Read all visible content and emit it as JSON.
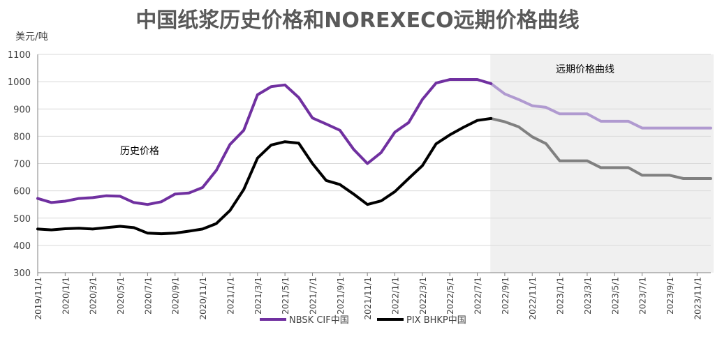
{
  "chart_data": {
    "type": "line",
    "title": "中国纸浆历史价格和NOREXECO远期价格曲线",
    "ylabel": "美元/吨",
    "ylim": [
      300,
      1100
    ],
    "yticks": [
      300,
      400,
      500,
      600,
      700,
      800,
      900,
      1000,
      1100
    ],
    "x_tick_labels": [
      "2019/11/1",
      "2020/1/1",
      "2020/3/1",
      "2020/5/1",
      "2020/7/1",
      "2020/9/1",
      "2020/11/1",
      "2021/1/1",
      "2021/3/1",
      "2021/5/1",
      "2021/7/1",
      "2021/9/1",
      "2021/11/1",
      "2022/1/1",
      "2022/3/1",
      "2022/5/1",
      "2022/7/1",
      "2022/9/1",
      "2022/11/1",
      "2023/1/1",
      "2023/3/1",
      "2023/5/1",
      "2023/7/1",
      "2023/9/1",
      "2023/11/1"
    ],
    "x_months": [
      "2019/11",
      "2019/12",
      "2020/1",
      "2020/2",
      "2020/3",
      "2020/4",
      "2020/5",
      "2020/6",
      "2020/7",
      "2020/8",
      "2020/9",
      "2020/10",
      "2020/11",
      "2020/12",
      "2021/1",
      "2021/2",
      "2021/3",
      "2021/4",
      "2021/5",
      "2021/6",
      "2021/7",
      "2021/8",
      "2021/9",
      "2021/10",
      "2021/11",
      "2021/12",
      "2022/1",
      "2022/2",
      "2022/3",
      "2022/4",
      "2022/5",
      "2022/6",
      "2022/7",
      "2022/8",
      "2022/9",
      "2022/10",
      "2022/11",
      "2022/12",
      "2023/1",
      "2023/2",
      "2023/3",
      "2023/4",
      "2023/5",
      "2023/6",
      "2023/7",
      "2023/8",
      "2023/9",
      "2023/10",
      "2023/11",
      "2023/12"
    ],
    "history_end_index": 33,
    "region_labels": {
      "history": "历史价格",
      "forward": "远期价格曲线"
    },
    "forward_region_color": "#f0f0f0",
    "legend_position": "bottom",
    "series": [
      {
        "name": "NBSK CIF中国",
        "color": "#7030a0",
        "forward_color": "#b09ad0",
        "values": [
          572,
          557,
          562,
          572,
          575,
          582,
          580,
          557,
          550,
          560,
          588,
          592,
          612,
          675,
          770,
          822,
          952,
          982,
          988,
          942,
          867,
          845,
          822,
          752,
          700,
          740,
          815,
          850,
          935,
          995,
          1008,
          1008,
          1008,
          993,
          955,
          935,
          912,
          906,
          882,
          882,
          882,
          855,
          855,
          855,
          830,
          830,
          830,
          830,
          830,
          830
        ]
      },
      {
        "name": "PIX BHKP中国",
        "color": "#000000",
        "forward_color": "#808080",
        "values": [
          460,
          457,
          461,
          463,
          460,
          465,
          470,
          465,
          445,
          443,
          445,
          452,
          460,
          480,
          528,
          605,
          720,
          768,
          780,
          775,
          700,
          638,
          623,
          588,
          550,
          563,
          597,
          645,
          692,
          772,
          805,
          833,
          858,
          865,
          853,
          835,
          798,
          773,
          710,
          710,
          710,
          685,
          685,
          685,
          657,
          657,
          657,
          645,
          645,
          645
        ]
      }
    ]
  }
}
